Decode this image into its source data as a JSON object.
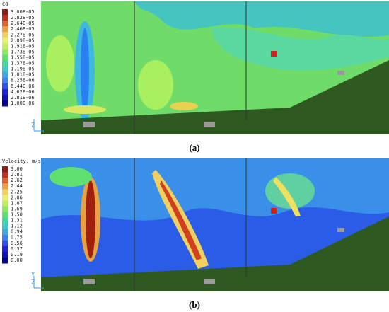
{
  "panels": [
    {
      "legend": {
        "title": "CO",
        "labels": [
          "3.00E-05",
          "2.82E-05",
          "2.64E-05",
          "2.46E-05",
          "2.27E-05",
          "2.09E-05",
          "1.91E-05",
          "1.73E-05",
          "1.55E-05",
          "1.37E-05",
          "1.19E-05",
          "1.01E-05",
          "8.25E-06",
          "6.44E-06",
          "4.62E-06",
          "2.81E-06",
          "1.00E-06"
        ]
      },
      "axis_labels": [
        "Z"
      ],
      "caption": "(a)"
    },
    {
      "legend": {
        "title": "Velocity, m/s",
        "labels": [
          "3.00",
          "2.81",
          "2.62",
          "2.44",
          "2.25",
          "2.06",
          "1.87",
          "1.69",
          "1.50",
          "1.31",
          "1.12",
          "0.94",
          "0.75",
          "0.56",
          "0.37",
          "0.19",
          "0.00"
        ]
      },
      "axis_labels": [
        "Y",
        "Z"
      ],
      "caption": "(b)"
    }
  ]
}
